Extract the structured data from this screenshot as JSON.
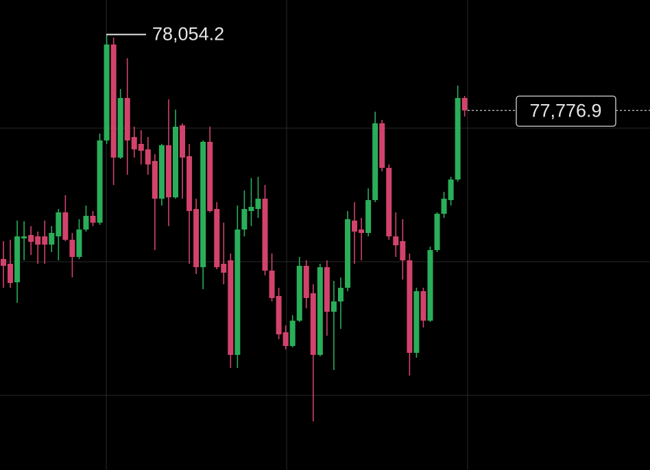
{
  "chart_data": {
    "type": "candlestick",
    "ylim": [
      76465,
      78180
    ],
    "grid_y": [
      77712.5,
      77225,
      76737.5
    ],
    "grid": true,
    "up_color": "#2aae5a",
    "down_color": "#d2436c",
    "open": [
      77235,
      77217.5,
      77150,
      77310,
      77322.5,
      77317.5,
      77317.5,
      77287.5,
      77317.5,
      77405,
      77305,
      77242.5,
      77342.5,
      77392.5,
      77367.5,
      77667.5,
      78017.5,
      77605,
      77822.5,
      77680,
      77655,
      77635,
      77592.5,
      77455,
      77650,
      77460,
      77722.5,
      77610,
      77417.5,
      77205,
      77662.5,
      77417.5,
      77217.5,
      77230,
      76885,
      77342.5,
      77410,
      77417.5,
      77455,
      77192.5,
      77100,
      76967.5,
      76917.5,
      77010,
      77210,
      77110,
      76885,
      77205,
      77042.5,
      77080,
      77130,
      77375,
      77342.5,
      77330,
      77450,
      77730,
      77567.5,
      77317.5,
      77300,
      77230,
      76892.5,
      77117.5,
      77010,
      77267.5,
      77400,
      77450,
      77525,
      77822.5
    ],
    "high": [
      77300,
      77305,
      77375,
      77372.5,
      77355,
      77335,
      77375,
      77355,
      77417.5,
      77467.5,
      77330,
      77380,
      77430,
      77410,
      77692.5,
      78054.2,
      78042.5,
      77855,
      77967.5,
      77717.5,
      77705,
      77680,
      77617.5,
      77655,
      77817.5,
      77780,
      77730,
      77655,
      77455,
      77667.5,
      77717.5,
      77442.5,
      77367.5,
      77255,
      77430,
      77485,
      77530,
      77535,
      77505,
      77255,
      77130,
      76992.5,
      77030,
      77242.5,
      77230,
      77142.5,
      77217.5,
      77230,
      77155,
      77167.5,
      77410,
      77442.5,
      77385,
      77492.5,
      77772.5,
      77742.5,
      77580,
      77405,
      77380,
      77255,
      77130,
      77130,
      77280,
      77405,
      77480,
      77535,
      77867.5,
      77830
    ],
    "low": [
      77130,
      77130,
      77075,
      77230,
      77250,
      77217.5,
      77217.5,
      77260,
      77230,
      77300,
      77167.5,
      77235,
      77335,
      77355,
      77360,
      77655,
      77505,
      77600,
      77542.5,
      77605,
      77580,
      77542.5,
      77267.5,
      77430,
      77355,
      77455,
      77455,
      77217.5,
      77180,
      77125,
      77405,
      77197.5,
      77142.5,
      76837.5,
      76837.5,
      77317.5,
      77355,
      77385,
      77175,
      77080,
      76942.5,
      76905,
      76912.5,
      77005,
      77055,
      76642.5,
      76880,
      76955,
      76830,
      76980,
      77117.5,
      77217.5,
      77230,
      77317.5,
      77442.5,
      77555,
      77305,
      77242.5,
      77160,
      76810,
      76875,
      76985,
      77005,
      77260,
      77385,
      77430,
      77517.5,
      77755
    ],
    "close": [
      77210,
      77147.5,
      77317.5,
      77317.5,
      77297.5,
      77287.5,
      77287.5,
      77330,
      77405,
      77305,
      77242.5,
      77342.5,
      77392.5,
      77367.5,
      77667.5,
      78017.5,
      77605,
      77822.5,
      77667.5,
      77635,
      77630,
      77580,
      77455,
      77650,
      77460,
      77717.5,
      77605,
      77410,
      77205,
      77662.5,
      77410,
      77205,
      77185,
      76885,
      77342.5,
      77417.5,
      77425,
      77455,
      77192.5,
      77092.5,
      76960,
      76917.5,
      77010,
      77210,
      77092.5,
      76885,
      77205,
      77042.5,
      77080,
      77130,
      77380,
      77335,
      77330,
      77450,
      77730,
      77567.5,
      77317.5,
      77285,
      77230,
      76892.5,
      77117.5,
      77010,
      77267.5,
      77400,
      77455,
      77525,
      77822.5,
      77776.9
    ],
    "high_marker": {
      "value": 78054.2,
      "label": "78,054.2"
    },
    "last_price": {
      "value": 77776.9,
      "label": "77,776.9"
    }
  }
}
